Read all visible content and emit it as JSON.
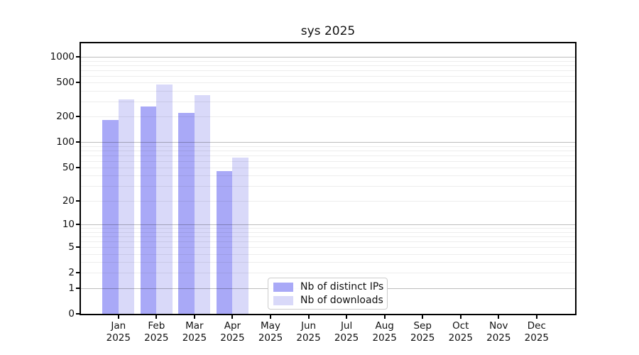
{
  "chart_data": {
    "type": "bar",
    "title": "sys 2025",
    "categories": [
      "Jan",
      "Feb",
      "Mar",
      "Apr",
      "May",
      "Jun",
      "Jul",
      "Aug",
      "Sep",
      "Oct",
      "Nov",
      "Dec"
    ],
    "category_year": "2025",
    "series": [
      {
        "name": "Nb of distinct IPs",
        "color": "#a9a9f7",
        "values": [
          182,
          261,
          222,
          45,
          0,
          0,
          0,
          0,
          0,
          0,
          0,
          0
        ]
      },
      {
        "name": "Nb of downloads",
        "color": "#d9d9f9",
        "values": [
          320,
          472,
          354,
          66,
          0,
          0,
          0,
          0,
          0,
          0,
          0,
          0
        ]
      }
    ],
    "y_axis": {
      "scale": "log1p",
      "ticks": [
        0,
        1,
        2,
        5,
        10,
        20,
        50,
        100,
        200,
        500,
        1000
      ],
      "max": 1500
    },
    "x_axis_label_lines": 2,
    "grid": true,
    "legend_position": "inside-bottom-center",
    "colors": {
      "axis": "#000000",
      "major_grid": "#c2c2c2",
      "minor_grid": "#ebebeb",
      "background": "#ffffff"
    }
  }
}
